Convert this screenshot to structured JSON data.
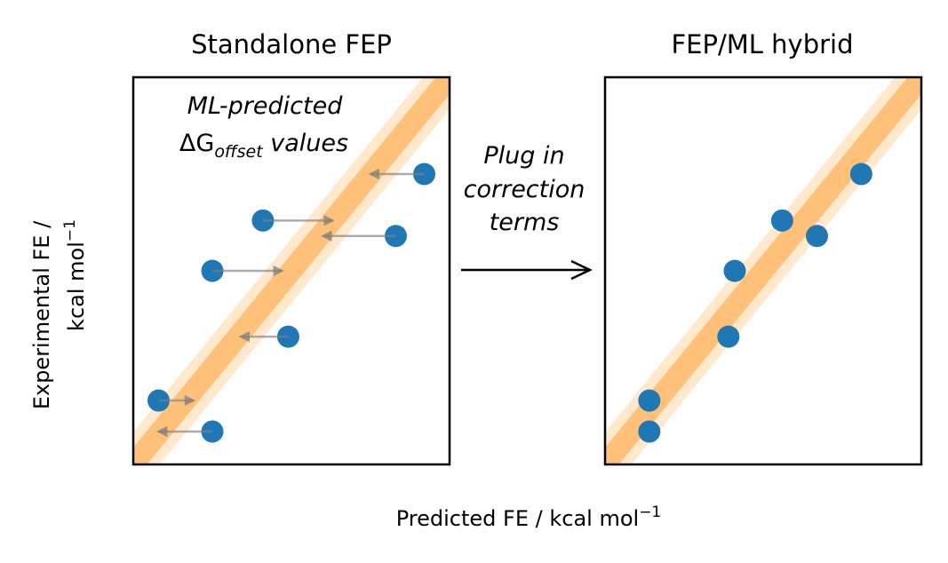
{
  "chart_data": [
    {
      "type": "scatter",
      "title": "Standalone FEP",
      "annotation_line1": "ML-predicted",
      "annotation_line2_symbol": "ΔG",
      "annotation_line2_sub": "offset",
      "annotation_line2_rest": " values",
      "diagonal": true,
      "band_color_inner": "#ffc17a",
      "band_color_outer": "#ffe8cc",
      "point_color": "#1f77b4",
      "arrow_color": "#7f7f7f",
      "xlim": [
        0,
        10
      ],
      "ylim": [
        0,
        10
      ],
      "points": [
        {
          "x": 9.2,
          "y": 7.5,
          "corrected_x": 7.5
        },
        {
          "x": 4.1,
          "y": 6.3,
          "corrected_x": 6.3
        },
        {
          "x": 8.3,
          "y": 5.9,
          "corrected_x": 6.0
        },
        {
          "x": 2.5,
          "y": 5.0,
          "corrected_x": 4.7
        },
        {
          "x": 4.9,
          "y": 3.3,
          "corrected_x": 3.4
        },
        {
          "x": 0.8,
          "y": 1.65,
          "corrected_x": 1.9
        },
        {
          "x": 2.5,
          "y": 0.85,
          "corrected_x": 0.8
        }
      ]
    },
    {
      "type": "scatter",
      "title": "FEP/ML hybrid",
      "diagonal": true,
      "band_color_inner": "#ffc17a",
      "band_color_outer": "#ffe8cc",
      "point_color": "#1f77b4",
      "xlim": [
        0,
        10
      ],
      "ylim": [
        0,
        10
      ],
      "points": [
        {
          "x": 8.1,
          "y": 7.5
        },
        {
          "x": 5.6,
          "y": 6.3
        },
        {
          "x": 6.7,
          "y": 5.9
        },
        {
          "x": 4.1,
          "y": 5.0
        },
        {
          "x": 3.9,
          "y": 3.3
        },
        {
          "x": 1.4,
          "y": 1.65
        },
        {
          "x": 1.4,
          "y": 0.85
        }
      ]
    }
  ],
  "arrow_label": [
    "Plug in",
    "correction",
    "terms"
  ],
  "ylabel_line1": "Experimental FE /",
  "ylabel_line2": "kcal mol",
  "ylabel_sup": "−1",
  "xlabel": "Predicted FE / kcal mol",
  "xlabel_sup": "−1"
}
